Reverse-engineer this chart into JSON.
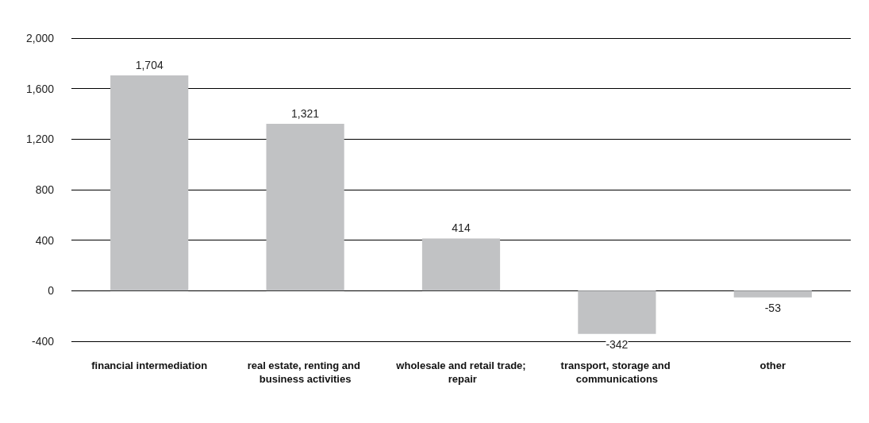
{
  "chart_data": {
    "type": "bar",
    "categories": [
      "financial intermediation",
      "real estate, renting and business activities",
      "wholesale and retail trade; repair",
      "transport, storage and communications",
      "other"
    ],
    "values": [
      1704,
      1321,
      414,
      -342,
      -53
    ],
    "color": "#c1c2c4",
    "value_labels": [
      "1,704",
      "1,321",
      "414",
      "-342",
      "-53"
    ],
    "ylim": [
      -400,
      2000
    ],
    "yticks": [
      -400,
      0,
      400,
      800,
      {
        "value": 1200,
        "label": "1,200"
      },
      {
        "value": 1600,
        "label": "1,600"
      },
      {
        "value": 2000,
        "label": "2,000"
      }
    ],
    "grid": "y"
  }
}
